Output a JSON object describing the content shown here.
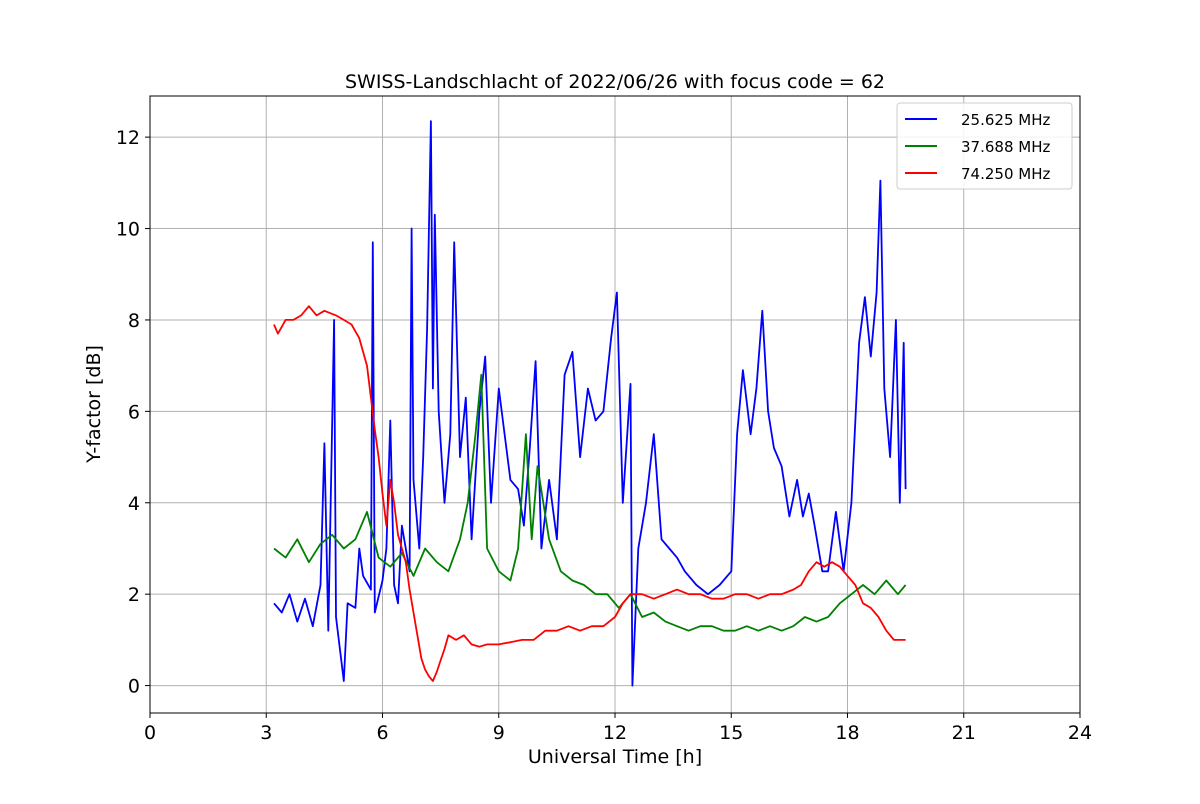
{
  "chart_data": {
    "type": "line",
    "title": "SWISS-Landschlacht of 2022/06/26 with focus code = 62",
    "xlabel": "Universal Time [h]",
    "ylabel": "Y-factor [dB]",
    "xlim": [
      0,
      24
    ],
    "ylim": [
      -0.6,
      12.9
    ],
    "xticks": [
      0,
      3,
      6,
      9,
      12,
      15,
      18,
      21,
      24
    ],
    "yticks": [
      0,
      2,
      4,
      6,
      8,
      10,
      12
    ],
    "grid": true,
    "legend_position": "top-right",
    "series": [
      {
        "name": "25.625 MHz",
        "color": "#0000ff",
        "points": [
          [
            3.2,
            1.8
          ],
          [
            3.4,
            1.6
          ],
          [
            3.6,
            2.0
          ],
          [
            3.8,
            1.4
          ],
          [
            4.0,
            1.9
          ],
          [
            4.2,
            1.3
          ],
          [
            4.4,
            2.2
          ],
          [
            4.5,
            5.3
          ],
          [
            4.6,
            1.2
          ],
          [
            4.75,
            8.0
          ],
          [
            4.8,
            1.5
          ],
          [
            5.0,
            0.1
          ],
          [
            5.1,
            1.8
          ],
          [
            5.3,
            1.7
          ],
          [
            5.4,
            3.0
          ],
          [
            5.5,
            2.4
          ],
          [
            5.7,
            2.1
          ],
          [
            5.75,
            9.7
          ],
          [
            5.8,
            1.6
          ],
          [
            6.0,
            2.3
          ],
          [
            6.1,
            3.0
          ],
          [
            6.2,
            5.8
          ],
          [
            6.3,
            2.2
          ],
          [
            6.4,
            1.8
          ],
          [
            6.5,
            3.5
          ],
          [
            6.7,
            2.5
          ],
          [
            6.75,
            10.0
          ],
          [
            6.8,
            4.5
          ],
          [
            6.95,
            3.0
          ],
          [
            7.05,
            5.0
          ],
          [
            7.15,
            7.8
          ],
          [
            7.25,
            12.35
          ],
          [
            7.3,
            6.5
          ],
          [
            7.35,
            10.3
          ],
          [
            7.45,
            6.0
          ],
          [
            7.6,
            4.0
          ],
          [
            7.75,
            5.5
          ],
          [
            7.85,
            9.7
          ],
          [
            8.0,
            5.0
          ],
          [
            8.15,
            6.3
          ],
          [
            8.3,
            3.2
          ],
          [
            8.5,
            6.0
          ],
          [
            8.65,
            7.2
          ],
          [
            8.8,
            4.0
          ],
          [
            9.0,
            6.5
          ],
          [
            9.15,
            5.5
          ],
          [
            9.3,
            4.5
          ],
          [
            9.5,
            4.3
          ],
          [
            9.65,
            3.5
          ],
          [
            9.8,
            5.2
          ],
          [
            9.95,
            7.1
          ],
          [
            10.1,
            3.0
          ],
          [
            10.3,
            4.5
          ],
          [
            10.5,
            3.2
          ],
          [
            10.7,
            6.8
          ],
          [
            10.9,
            7.3
          ],
          [
            11.1,
            5.0
          ],
          [
            11.3,
            6.5
          ],
          [
            11.5,
            5.8
          ],
          [
            11.7,
            6.0
          ],
          [
            11.9,
            7.6
          ],
          [
            12.05,
            8.6
          ],
          [
            12.2,
            4.0
          ],
          [
            12.4,
            6.6
          ],
          [
            12.45,
            0.0
          ],
          [
            12.6,
            3.0
          ],
          [
            12.8,
            4.0
          ],
          [
            13.0,
            5.5
          ],
          [
            13.2,
            3.2
          ],
          [
            13.4,
            3.0
          ],
          [
            13.6,
            2.8
          ],
          [
            13.8,
            2.5
          ],
          [
            14.1,
            2.2
          ],
          [
            14.4,
            2.0
          ],
          [
            14.7,
            2.2
          ],
          [
            15.0,
            2.5
          ],
          [
            15.15,
            5.5
          ],
          [
            15.3,
            6.9
          ],
          [
            15.5,
            5.5
          ],
          [
            15.65,
            6.5
          ],
          [
            15.8,
            8.2
          ],
          [
            15.95,
            6.0
          ],
          [
            16.1,
            5.2
          ],
          [
            16.3,
            4.8
          ],
          [
            16.5,
            3.7
          ],
          [
            16.7,
            4.5
          ],
          [
            16.85,
            3.7
          ],
          [
            17.0,
            4.2
          ],
          [
            17.15,
            3.5
          ],
          [
            17.35,
            2.5
          ],
          [
            17.5,
            2.5
          ],
          [
            17.7,
            3.8
          ],
          [
            17.9,
            2.5
          ],
          [
            18.1,
            4.0
          ],
          [
            18.3,
            7.5
          ],
          [
            18.45,
            8.5
          ],
          [
            18.6,
            7.2
          ],
          [
            18.75,
            8.6
          ],
          [
            18.85,
            11.05
          ],
          [
            18.95,
            6.5
          ],
          [
            19.1,
            5.0
          ],
          [
            19.25,
            8.0
          ],
          [
            19.35,
            4.0
          ],
          [
            19.45,
            7.5
          ],
          [
            19.5,
            4.3
          ]
        ]
      },
      {
        "name": "37.688 MHz",
        "color": "#008000",
        "points": [
          [
            3.2,
            3.0
          ],
          [
            3.5,
            2.8
          ],
          [
            3.8,
            3.2
          ],
          [
            4.1,
            2.7
          ],
          [
            4.4,
            3.1
          ],
          [
            4.7,
            3.3
          ],
          [
            5.0,
            3.0
          ],
          [
            5.3,
            3.2
          ],
          [
            5.6,
            3.8
          ],
          [
            5.9,
            2.8
          ],
          [
            6.2,
            2.6
          ],
          [
            6.5,
            2.9
          ],
          [
            6.8,
            2.4
          ],
          [
            7.1,
            3.0
          ],
          [
            7.4,
            2.7
          ],
          [
            7.7,
            2.5
          ],
          [
            8.0,
            3.2
          ],
          [
            8.2,
            4.0
          ],
          [
            8.4,
            5.5
          ],
          [
            8.55,
            6.8
          ],
          [
            8.7,
            3.0
          ],
          [
            9.0,
            2.5
          ],
          [
            9.3,
            2.3
          ],
          [
            9.5,
            3.0
          ],
          [
            9.7,
            5.5
          ],
          [
            9.85,
            3.2
          ],
          [
            10.0,
            4.8
          ],
          [
            10.3,
            3.2
          ],
          [
            10.6,
            2.5
          ],
          [
            10.9,
            2.3
          ],
          [
            11.2,
            2.2
          ],
          [
            11.5,
            2.0
          ],
          [
            11.8,
            2.0
          ],
          [
            12.1,
            1.7
          ],
          [
            12.4,
            2.0
          ],
          [
            12.7,
            1.5
          ],
          [
            13.0,
            1.6
          ],
          [
            13.3,
            1.4
          ],
          [
            13.6,
            1.3
          ],
          [
            13.9,
            1.2
          ],
          [
            14.2,
            1.3
          ],
          [
            14.5,
            1.3
          ],
          [
            14.8,
            1.2
          ],
          [
            15.1,
            1.2
          ],
          [
            15.4,
            1.3
          ],
          [
            15.7,
            1.2
          ],
          [
            16.0,
            1.3
          ],
          [
            16.3,
            1.2
          ],
          [
            16.6,
            1.3
          ],
          [
            16.9,
            1.5
          ],
          [
            17.2,
            1.4
          ],
          [
            17.5,
            1.5
          ],
          [
            17.8,
            1.8
          ],
          [
            18.1,
            2.0
          ],
          [
            18.4,
            2.2
          ],
          [
            18.7,
            2.0
          ],
          [
            19.0,
            2.3
          ],
          [
            19.3,
            2.0
          ],
          [
            19.5,
            2.2
          ]
        ]
      },
      {
        "name": "74.250 MHz",
        "color": "#ff0000",
        "points": [
          [
            3.2,
            7.9
          ],
          [
            3.3,
            7.7
          ],
          [
            3.5,
            8.0
          ],
          [
            3.7,
            8.0
          ],
          [
            3.9,
            8.1
          ],
          [
            4.1,
            8.3
          ],
          [
            4.3,
            8.1
          ],
          [
            4.5,
            8.2
          ],
          [
            4.8,
            8.1
          ],
          [
            5.0,
            8.0
          ],
          [
            5.2,
            7.9
          ],
          [
            5.4,
            7.6
          ],
          [
            5.5,
            7.3
          ],
          [
            5.6,
            7.0
          ],
          [
            5.7,
            6.3
          ],
          [
            5.8,
            5.6
          ],
          [
            5.9,
            5.0
          ],
          [
            6.0,
            4.2
          ],
          [
            6.1,
            3.5
          ],
          [
            6.2,
            4.5
          ],
          [
            6.3,
            4.0
          ],
          [
            6.4,
            3.3
          ],
          [
            6.5,
            3.0
          ],
          [
            6.6,
            2.7
          ],
          [
            6.7,
            2.1
          ],
          [
            6.8,
            1.6
          ],
          [
            6.9,
            1.1
          ],
          [
            7.0,
            0.6
          ],
          [
            7.1,
            0.35
          ],
          [
            7.2,
            0.2
          ],
          [
            7.3,
            0.1
          ],
          [
            7.4,
            0.3
          ],
          [
            7.5,
            0.55
          ],
          [
            7.6,
            0.8
          ],
          [
            7.7,
            1.1
          ],
          [
            7.9,
            1.0
          ],
          [
            8.1,
            1.1
          ],
          [
            8.3,
            0.9
          ],
          [
            8.5,
            0.85
          ],
          [
            8.7,
            0.9
          ],
          [
            9.0,
            0.9
          ],
          [
            9.3,
            0.95
          ],
          [
            9.6,
            1.0
          ],
          [
            9.9,
            1.0
          ],
          [
            10.2,
            1.2
          ],
          [
            10.5,
            1.2
          ],
          [
            10.8,
            1.3
          ],
          [
            11.1,
            1.2
          ],
          [
            11.4,
            1.3
          ],
          [
            11.7,
            1.3
          ],
          [
            12.0,
            1.5
          ],
          [
            12.2,
            1.8
          ],
          [
            12.4,
            2.0
          ],
          [
            12.7,
            2.0
          ],
          [
            13.0,
            1.9
          ],
          [
            13.3,
            2.0
          ],
          [
            13.6,
            2.1
          ],
          [
            13.9,
            2.0
          ],
          [
            14.2,
            2.0
          ],
          [
            14.5,
            1.9
          ],
          [
            14.8,
            1.9
          ],
          [
            15.1,
            2.0
          ],
          [
            15.4,
            2.0
          ],
          [
            15.7,
            1.9
          ],
          [
            16.0,
            2.0
          ],
          [
            16.3,
            2.0
          ],
          [
            16.6,
            2.1
          ],
          [
            16.8,
            2.2
          ],
          [
            17.0,
            2.5
          ],
          [
            17.2,
            2.7
          ],
          [
            17.4,
            2.6
          ],
          [
            17.6,
            2.7
          ],
          [
            17.8,
            2.6
          ],
          [
            18.0,
            2.4
          ],
          [
            18.2,
            2.2
          ],
          [
            18.4,
            1.8
          ],
          [
            18.6,
            1.7
          ],
          [
            18.8,
            1.5
          ],
          [
            19.0,
            1.2
          ],
          [
            19.2,
            1.0
          ],
          [
            19.4,
            1.0
          ],
          [
            19.5,
            1.0
          ]
        ]
      }
    ]
  }
}
